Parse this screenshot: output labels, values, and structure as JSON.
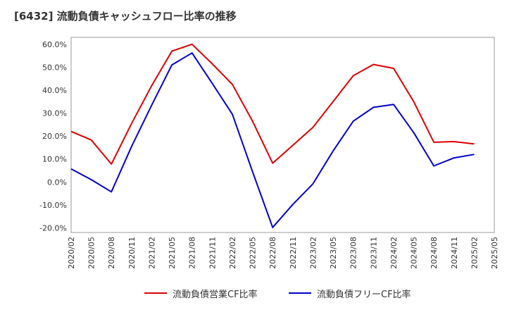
{
  "title": "[6432]  流動負債キャッシュフロー比率の推移",
  "chart_data": {
    "type": "line",
    "categories": [
      "2020/02",
      "2020/05",
      "2020/08",
      "2020/11",
      "2021/02",
      "2021/05",
      "2021/08",
      "2021/11",
      "2022/02",
      "2022/05",
      "2022/08",
      "2022/11",
      "2023/02",
      "2023/05",
      "2023/08",
      "2023/11",
      "2024/02",
      "2024/05",
      "2024/08",
      "2024/11",
      "2025/02",
      "2025/05"
    ],
    "yticks": [
      "-20.0%",
      "-10.0%",
      "0.0%",
      "10.0%",
      "20.0%",
      "30.0%",
      "40.0%",
      "50.0%",
      "60.0%"
    ],
    "ylim": [
      -22,
      63
    ],
    "grid": true,
    "legend_position": "bottom",
    "series": [
      {
        "name": "流動負債営業CF比率",
        "color": "#dd0000",
        "values": [
          22.0,
          18.3,
          7.8,
          25.5,
          42.0,
          57.0,
          60.0,
          51.5,
          42.5,
          26.5,
          8.2,
          16.0,
          23.8,
          35.0,
          46.3,
          51.2,
          49.5,
          35.0,
          17.3,
          17.6,
          16.6,
          null
        ]
      },
      {
        "name": "流動負債フリーCF比率",
        "color": "#0000cc",
        "values": [
          5.7,
          1.0,
          -4.3,
          15.5,
          33.5,
          51.0,
          56.2,
          43.0,
          29.5,
          4.5,
          -19.8,
          -9.8,
          -0.8,
          13.5,
          26.5,
          32.5,
          33.8,
          21.5,
          7.0,
          10.5,
          12.0,
          null
        ]
      }
    ]
  }
}
